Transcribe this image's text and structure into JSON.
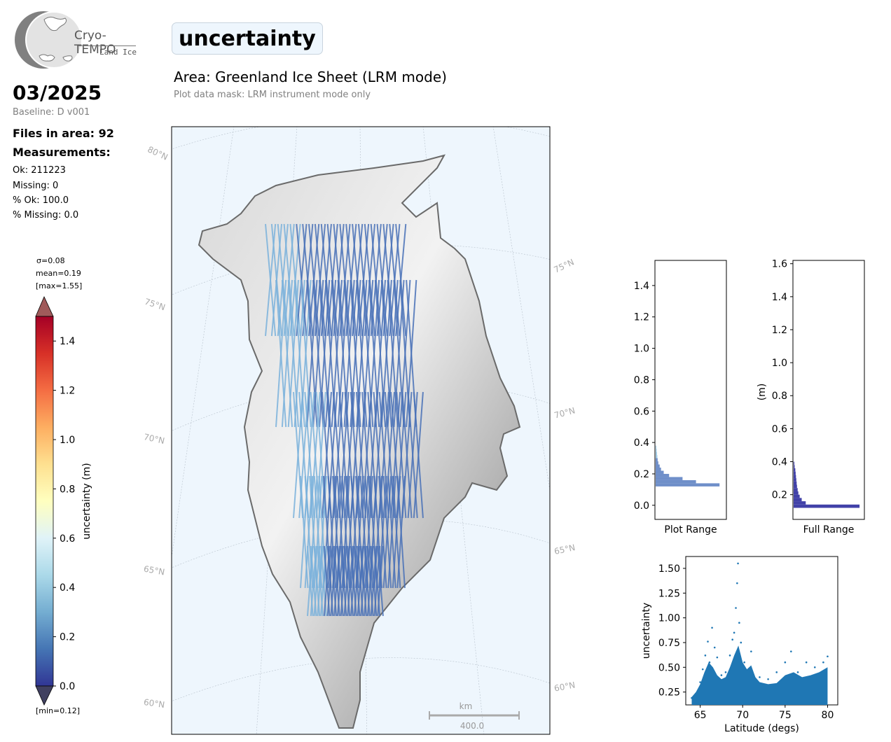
{
  "logo": {
    "line1": "Cryo-TEMPO",
    "line2": "Land Ice"
  },
  "header": {
    "variable": "uncertainty",
    "area": "Area: Greenland Ice Sheet (LRM mode)",
    "mask": "Plot data mask: LRM instrument mode only"
  },
  "left_panel": {
    "date": "03/2025",
    "baseline": "Baseline: D v001",
    "files": "Files in area: 92",
    "measurements_title": "Measurements:",
    "ok": "Ok: 211223",
    "missing": "Missing: 0",
    "pct_ok": "% Ok: 100.0",
    "pct_missing": "% Missing: 0.0"
  },
  "colorbar": {
    "sigma": "σ=0.08",
    "mean": "mean=0.19",
    "max": "[max=1.55]",
    "min": "[min=0.12]",
    "label": "uncertainty (m)",
    "ticks": [
      "0.0",
      "0.2",
      "0.4",
      "0.6",
      "0.8",
      "1.0",
      "1.2",
      "1.4"
    ],
    "range": [
      0.0,
      1.5
    ],
    "colormap": "RdYlBu_r"
  },
  "map": {
    "lat_labels_left": [
      "80°N",
      "75°N",
      "70°N",
      "65°N",
      "60°N"
    ],
    "lat_labels_right": [
      "75°N",
      "70°N",
      "65°N",
      "60°N"
    ],
    "scale_unit": "km",
    "scale_value": "400.0",
    "ocean_color": "#eef6fd",
    "track_color": "#4a72b8"
  },
  "chart_data": [
    {
      "type": "bar",
      "orientation": "horizontal",
      "xlabel": "Plot Range",
      "ylabel": "",
      "ylim": [
        -0.09,
        1.56
      ],
      "yticks": [
        "0.0",
        "0.2",
        "0.4",
        "0.6",
        "0.8",
        "1.0",
        "1.2",
        "1.4"
      ],
      "bins": [
        {
          "y": 0.12,
          "count": 0.95
        },
        {
          "y": 0.14,
          "count": 0.6
        },
        {
          "y": 0.16,
          "count": 0.4
        },
        {
          "y": 0.18,
          "count": 0.2
        },
        {
          "y": 0.2,
          "count": 0.12
        },
        {
          "y": 0.22,
          "count": 0.08
        },
        {
          "y": 0.24,
          "count": 0.06
        },
        {
          "y": 0.26,
          "count": 0.04
        },
        {
          "y": 0.28,
          "count": 0.03
        },
        {
          "y": 0.3,
          "count": 0.025
        },
        {
          "y": 0.32,
          "count": 0.02
        },
        {
          "y": 0.34,
          "count": 0.015
        },
        {
          "y": 0.36,
          "count": 0.01
        }
      ]
    },
    {
      "type": "bar",
      "orientation": "horizontal",
      "xlabel": "Full Range",
      "ylabel": "(m)",
      "ylim": [
        0.05,
        1.62
      ],
      "yticks": [
        "0.2",
        "0.4",
        "0.6",
        "0.8",
        "1.0",
        "1.2",
        "1.4",
        "1.6"
      ],
      "bins": [
        {
          "y": 0.12,
          "count": 0.98
        },
        {
          "y": 0.14,
          "count": 0.18
        },
        {
          "y": 0.16,
          "count": 0.12
        },
        {
          "y": 0.18,
          "count": 0.09
        },
        {
          "y": 0.2,
          "count": 0.07
        },
        {
          "y": 0.22,
          "count": 0.06
        },
        {
          "y": 0.24,
          "count": 0.05
        },
        {
          "y": 0.26,
          "count": 0.045
        },
        {
          "y": 0.28,
          "count": 0.04
        },
        {
          "y": 0.3,
          "count": 0.035
        },
        {
          "y": 0.32,
          "count": 0.03
        },
        {
          "y": 0.34,
          "count": 0.025
        },
        {
          "y": 0.36,
          "count": 0.015
        },
        {
          "y": 0.38,
          "count": 0.01
        }
      ]
    },
    {
      "type": "scatter",
      "xlabel": "Latitude (degs)",
      "ylabel": "uncertainty",
      "xlim": [
        63.3,
        81.2
      ],
      "ylim": [
        0.12,
        1.62
      ],
      "xticks": [
        "65",
        "70",
        "75",
        "80"
      ],
      "yticks": [
        "0.25",
        "0.50",
        "0.75",
        "1.00",
        "1.25",
        "1.50"
      ],
      "color": "#1f77b4",
      "points": [
        [
          64.0,
          0.19
        ],
        [
          64.5,
          0.22
        ],
        [
          65.0,
          0.35
        ],
        [
          65.3,
          0.48
        ],
        [
          65.6,
          0.62
        ],
        [
          65.9,
          0.76
        ],
        [
          66.1,
          0.55
        ],
        [
          66.4,
          0.9
        ],
        [
          66.7,
          0.7
        ],
        [
          67.0,
          0.6
        ],
        [
          67.5,
          0.42
        ],
        [
          68.0,
          0.45
        ],
        [
          68.5,
          0.62
        ],
        [
          68.8,
          0.78
        ],
        [
          69.0,
          0.85
        ],
        [
          69.2,
          1.1
        ],
        [
          69.35,
          1.35
        ],
        [
          69.45,
          1.55
        ],
        [
          69.6,
          0.95
        ],
        [
          69.8,
          0.75
        ],
        [
          70.2,
          0.55
        ],
        [
          71.0,
          0.66
        ],
        [
          72.0,
          0.4
        ],
        [
          73.0,
          0.38
        ],
        [
          74.0,
          0.45
        ],
        [
          75.0,
          0.55
        ],
        [
          75.7,
          0.66
        ],
        [
          76.5,
          0.45
        ],
        [
          77.5,
          0.55
        ],
        [
          78.5,
          0.5
        ],
        [
          79.5,
          0.55
        ],
        [
          80.0,
          0.61
        ]
      ],
      "envelope": [
        [
          64.0,
          0.2
        ],
        [
          64.5,
          0.25
        ],
        [
          65.0,
          0.33
        ],
        [
          65.5,
          0.45
        ],
        [
          66.0,
          0.55
        ],
        [
          66.5,
          0.5
        ],
        [
          67.0,
          0.42
        ],
        [
          67.5,
          0.38
        ],
        [
          68.0,
          0.4
        ],
        [
          68.5,
          0.5
        ],
        [
          69.0,
          0.62
        ],
        [
          69.5,
          0.72
        ],
        [
          70.0,
          0.55
        ],
        [
          70.5,
          0.48
        ],
        [
          71.0,
          0.52
        ],
        [
          71.5,
          0.4
        ],
        [
          72.0,
          0.35
        ],
        [
          73.0,
          0.33
        ],
        [
          74.0,
          0.34
        ],
        [
          75.0,
          0.42
        ],
        [
          76.0,
          0.45
        ],
        [
          77.0,
          0.4
        ],
        [
          78.0,
          0.42
        ],
        [
          79.0,
          0.45
        ],
        [
          80.0,
          0.5
        ]
      ]
    }
  ]
}
